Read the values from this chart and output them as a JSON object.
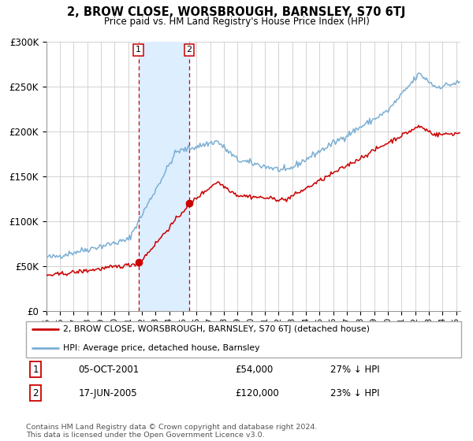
{
  "title": "2, BROW CLOSE, WORSBROUGH, BARNSLEY, S70 6TJ",
  "subtitle": "Price paid vs. HM Land Registry's House Price Index (HPI)",
  "legend_line1": "2, BROW CLOSE, WORSBROUGH, BARNSLEY, S70 6TJ (detached house)",
  "legend_line2": "HPI: Average price, detached house, Barnsley",
  "footnote": "Contains HM Land Registry data © Crown copyright and database right 2024.\nThis data is licensed under the Open Government Licence v3.0.",
  "transaction1_label": "1",
  "transaction1_date": "05-OCT-2001",
  "transaction1_price": "£54,000",
  "transaction1_hpi": "27% ↓ HPI",
  "transaction2_label": "2",
  "transaction2_date": "17-JUN-2005",
  "transaction2_price": "£120,000",
  "transaction2_hpi": "23% ↓ HPI",
  "ylim": [
    0,
    300000
  ],
  "yticks": [
    0,
    50000,
    100000,
    150000,
    200000,
    250000,
    300000
  ],
  "sale_color": "#cc0000",
  "hpi_color": "#7bafd4",
  "shade_color": "#ddeeff",
  "vline_color": "#cc0000",
  "marker1_x": 2001.75,
  "marker1_y": 54000,
  "marker2_x": 2005.46,
  "marker2_y": 120000,
  "shade_x1": 2001.75,
  "shade_x2": 2005.46,
  "xmin": 1995,
  "xmax": 2025.3
}
